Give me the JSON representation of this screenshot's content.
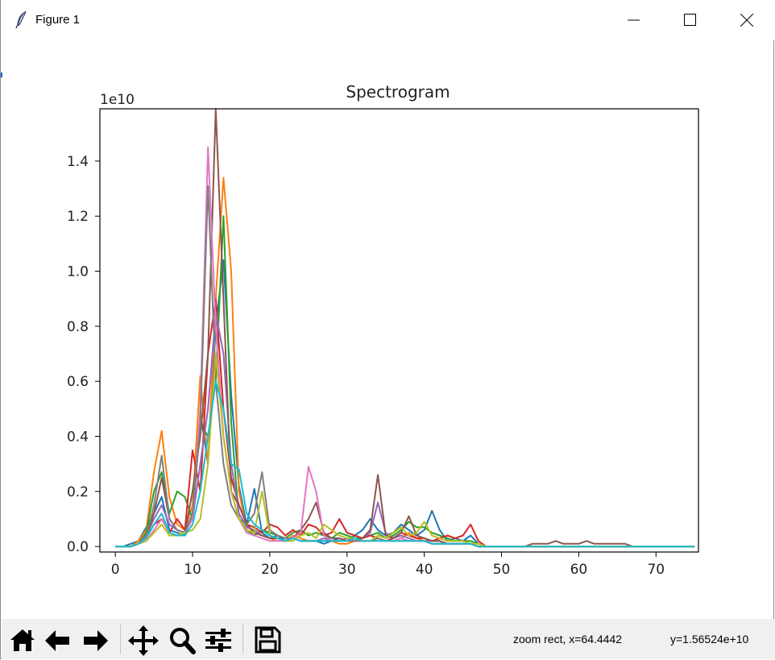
{
  "window": {
    "title": "Figure 1"
  },
  "icons": {
    "app": "feather-icon",
    "minimize": "minimize-icon",
    "maximize": "maximize-icon",
    "close": "close-icon"
  },
  "toolbar": {
    "buttons": [
      "home-icon",
      "back-icon",
      "forward-icon",
      "pan-icon",
      "zoom-icon",
      "configure-subplots-icon",
      "save-icon"
    ],
    "status_x": "zoom rect, x=64.4442",
    "status_y": "y=1.56524e+10"
  },
  "chart_data": {
    "type": "line",
    "title": "Spectrogram",
    "offset_text": "1e10",
    "xlabel": "",
    "ylabel": "",
    "xlim": [
      -2,
      75.5
    ],
    "ylim": [
      -0.02,
      1.59
    ],
    "y_scale_note": "values in units of 1e10",
    "x_ticks": [
      "0",
      "10",
      "20",
      "30",
      "40",
      "50",
      "60",
      "70"
    ],
    "y_ticks": [
      "0.0",
      "0.2",
      "0.4",
      "0.6",
      "0.8",
      "1.0",
      "1.2",
      "1.4"
    ],
    "grid": false,
    "legend": "none",
    "x": [
      0,
      1,
      2,
      3,
      4,
      5,
      6,
      7,
      8,
      9,
      10,
      11,
      12,
      13,
      14,
      15,
      16,
      17,
      18,
      19,
      20,
      21,
      22,
      23,
      24,
      25,
      26,
      27,
      28,
      29,
      30,
      31,
      32,
      33,
      34,
      35,
      36,
      37,
      38,
      39,
      40,
      41,
      42,
      43,
      44,
      45,
      46,
      47,
      48,
      49,
      50,
      51,
      52,
      53,
      54,
      55,
      56,
      57,
      58,
      59,
      60,
      61,
      62,
      63,
      64,
      65,
      66,
      67,
      68,
      69,
      70,
      71,
      72,
      73,
      74,
      75
    ],
    "series": [
      {
        "color": "#1f77b4",
        "values": [
          0,
          0,
          0.01,
          0.02,
          0.07,
          0.12,
          0.18,
          0.06,
          0.05,
          0.04,
          0.12,
          0.49,
          0.3,
          0.8,
          1.04,
          0.55,
          0.22,
          0.08,
          0.21,
          0.05,
          0.03,
          0.04,
          0.02,
          0.03,
          0.02,
          0.02,
          0.02,
          0.01,
          0.02,
          0.03,
          0.02,
          0.04,
          0.06,
          0.1,
          0.06,
          0.04,
          0.05,
          0.08,
          0.06,
          0.04,
          0.06,
          0.13,
          0.06,
          0.02,
          0.03,
          0.02,
          0.04,
          0.01,
          0,
          0,
          0,
          0,
          0,
          0,
          0,
          0,
          0,
          0,
          0,
          0,
          0,
          0,
          0,
          0,
          0,
          0,
          0,
          0,
          0,
          0,
          0,
          0,
          0,
          0,
          0,
          0
        ]
      },
      {
        "color": "#ff7f0e",
        "values": [
          0,
          0,
          0,
          0.02,
          0.06,
          0.27,
          0.42,
          0.18,
          0.08,
          0.06,
          0.15,
          0.62,
          0.3,
          0.9,
          1.34,
          1.0,
          0.2,
          0.06,
          0.05,
          0.04,
          0.03,
          0.02,
          0.02,
          0.04,
          0.03,
          0.02,
          0.02,
          0.02,
          0.02,
          0.01,
          0.01,
          0.02,
          0.02,
          0.02,
          0.03,
          0.02,
          0.02,
          0.03,
          0.05,
          0.03,
          0.02,
          0.02,
          0.02,
          0.01,
          0.01,
          0.01,
          0.01,
          0,
          0,
          0,
          0,
          0,
          0,
          0,
          0,
          0,
          0,
          0,
          0,
          0,
          0,
          0,
          0,
          0,
          0,
          0,
          0,
          0,
          0,
          0,
          0,
          0,
          0,
          0,
          0,
          0
        ]
      },
      {
        "color": "#2ca02c",
        "values": [
          0,
          0,
          0,
          0.01,
          0.05,
          0.2,
          0.27,
          0.12,
          0.2,
          0.18,
          0.1,
          0.45,
          0.4,
          0.6,
          1.2,
          0.45,
          0.1,
          0.06,
          0.04,
          0.06,
          0.05,
          0.04,
          0.03,
          0.05,
          0.06,
          0.04,
          0.05,
          0.04,
          0.03,
          0.05,
          0.04,
          0.03,
          0.03,
          0.04,
          0.05,
          0.03,
          0.04,
          0.06,
          0.09,
          0.07,
          0.07,
          0.05,
          0.04,
          0.03,
          0.02,
          0.02,
          0.02,
          0.01,
          0,
          0,
          0,
          0,
          0,
          0,
          0,
          0,
          0,
          0,
          0,
          0,
          0,
          0,
          0,
          0,
          0,
          0,
          0,
          0,
          0,
          0,
          0,
          0,
          0,
          0,
          0,
          0
        ]
      },
      {
        "color": "#d62728",
        "values": [
          0,
          0,
          0,
          0.01,
          0.03,
          0.08,
          0.1,
          0.05,
          0.1,
          0.06,
          0.35,
          0.2,
          0.7,
          0.9,
          0.5,
          0.25,
          0.15,
          0.08,
          0.07,
          0.05,
          0.08,
          0.07,
          0.04,
          0.06,
          0.04,
          0.08,
          0.07,
          0.04,
          0.05,
          0.1,
          0.05,
          0.04,
          0.03,
          0.04,
          0.03,
          0.02,
          0.03,
          0.05,
          0.04,
          0.03,
          0.03,
          0.02,
          0.03,
          0.04,
          0.03,
          0.04,
          0.08,
          0.02,
          0,
          0,
          0,
          0,
          0,
          0,
          0,
          0,
          0,
          0,
          0,
          0,
          0,
          0,
          0,
          0,
          0,
          0,
          0,
          0,
          0,
          0,
          0,
          0,
          0,
          0,
          0,
          0
        ]
      },
      {
        "color": "#9467bd",
        "values": [
          0,
          0,
          0,
          0.01,
          0.04,
          0.1,
          0.15,
          0.08,
          0.06,
          0.05,
          0.1,
          0.3,
          0.5,
          0.85,
          0.7,
          0.3,
          0.12,
          0.07,
          0.06,
          0.04,
          0.03,
          0.03,
          0.02,
          0.03,
          0.02,
          0.02,
          0.02,
          0.03,
          0.02,
          0.02,
          0.03,
          0.02,
          0.03,
          0.05,
          0.16,
          0.05,
          0.03,
          0.04,
          0.03,
          0.02,
          0.02,
          0.02,
          0.02,
          0.01,
          0.01,
          0.01,
          0.01,
          0,
          0,
          0,
          0,
          0,
          0,
          0,
          0,
          0,
          0,
          0,
          0,
          0,
          0,
          0,
          0,
          0,
          0,
          0,
          0,
          0,
          0,
          0,
          0,
          0,
          0,
          0,
          0,
          0
        ]
      },
      {
        "color": "#8c564b",
        "values": [
          0,
          0,
          0,
          0.01,
          0.03,
          0.12,
          0.25,
          0.1,
          0.06,
          0.05,
          0.2,
          0.4,
          0.7,
          1.59,
          0.9,
          0.2,
          0.15,
          0.08,
          0.05,
          0.04,
          0.03,
          0.03,
          0.02,
          0.03,
          0.06,
          0.1,
          0.16,
          0.05,
          0.03,
          0.03,
          0.02,
          0.02,
          0.03,
          0.06,
          0.26,
          0.04,
          0.03,
          0.05,
          0.11,
          0.04,
          0.03,
          0.02,
          0.02,
          0.01,
          0.01,
          0.01,
          0.01,
          0,
          0,
          0,
          0,
          0,
          0,
          0,
          0.01,
          0.01,
          0.01,
          0.02,
          0.01,
          0.01,
          0.01,
          0.02,
          0.01,
          0.01,
          0.01,
          0.01,
          0.01,
          0,
          0,
          0,
          0,
          0,
          0,
          0,
          0,
          0
        ]
      },
      {
        "color": "#e377c2",
        "values": [
          0,
          0,
          0,
          0.01,
          0.02,
          0.06,
          0.1,
          0.05,
          0.04,
          0.05,
          0.1,
          0.5,
          1.45,
          0.8,
          0.4,
          0.2,
          0.1,
          0.05,
          0.04,
          0.03,
          0.02,
          0.02,
          0.02,
          0.03,
          0.05,
          0.29,
          0.2,
          0.04,
          0.02,
          0.02,
          0.02,
          0.02,
          0.02,
          0.02,
          0.02,
          0.02,
          0.02,
          0.03,
          0.02,
          0.02,
          0.02,
          0.01,
          0.01,
          0.01,
          0.01,
          0.01,
          0.01,
          0,
          0,
          0,
          0,
          0,
          0,
          0,
          0,
          0,
          0,
          0,
          0,
          0,
          0,
          0,
          0,
          0,
          0,
          0,
          0,
          0,
          0,
          0,
          0,
          0,
          0,
          0,
          0,
          0
        ]
      },
      {
        "color": "#7f7f7f",
        "values": [
          0,
          0,
          0,
          0.01,
          0.03,
          0.15,
          0.33,
          0.1,
          0.06,
          0.05,
          0.12,
          0.45,
          1.31,
          0.6,
          0.3,
          0.15,
          0.1,
          0.08,
          0.12,
          0.27,
          0.06,
          0.04,
          0.03,
          0.03,
          0.02,
          0.02,
          0.02,
          0.02,
          0.02,
          0.02,
          0.02,
          0.02,
          0.02,
          0.02,
          0.03,
          0.02,
          0.02,
          0.02,
          0.02,
          0.02,
          0.02,
          0.01,
          0.01,
          0.01,
          0.01,
          0.01,
          0.01,
          0,
          0,
          0,
          0,
          0,
          0,
          0,
          0,
          0,
          0,
          0,
          0,
          0,
          0,
          0,
          0,
          0,
          0,
          0,
          0,
          0,
          0,
          0,
          0,
          0,
          0,
          0,
          0,
          0
        ]
      },
      {
        "color": "#bcbd22",
        "values": [
          0,
          0,
          0,
          0.01,
          0.02,
          0.05,
          0.08,
          0.04,
          0.04,
          0.05,
          0.06,
          0.1,
          0.3,
          0.7,
          0.4,
          0.2,
          0.1,
          0.06,
          0.05,
          0.2,
          0.04,
          0.03,
          0.02,
          0.02,
          0.04,
          0.05,
          0.03,
          0.08,
          0.06,
          0.04,
          0.03,
          0.03,
          0.02,
          0.02,
          0.04,
          0.03,
          0.05,
          0.07,
          0.04,
          0.05,
          0.09,
          0.04,
          0.03,
          0.02,
          0.02,
          0.02,
          0.01,
          0.01,
          0,
          0,
          0,
          0,
          0,
          0,
          0,
          0,
          0,
          0,
          0,
          0,
          0,
          0,
          0,
          0,
          0,
          0,
          0,
          0,
          0,
          0,
          0,
          0,
          0,
          0,
          0,
          0
        ]
      },
      {
        "color": "#17becf",
        "values": [
          0,
          0,
          0,
          0.01,
          0.03,
          0.08,
          0.12,
          0.05,
          0.04,
          0.04,
          0.08,
          0.2,
          0.4,
          0.6,
          0.5,
          0.3,
          0.28,
          0.12,
          0.08,
          0.06,
          0.04,
          0.03,
          0.02,
          0.03,
          0.02,
          0.02,
          0.02,
          0.02,
          0.02,
          0.02,
          0.02,
          0.03,
          0.02,
          0.02,
          0.02,
          0.02,
          0.02,
          0.02,
          0.02,
          0.02,
          0.02,
          0.01,
          0.01,
          0.01,
          0.01,
          0.01,
          0.01,
          0,
          0,
          0,
          0,
          0,
          0,
          0,
          0,
          0,
          0,
          0,
          0,
          0,
          0,
          0,
          0,
          0,
          0,
          0,
          0,
          0,
          0,
          0,
          0,
          0,
          0,
          0,
          0,
          0
        ]
      }
    ]
  }
}
